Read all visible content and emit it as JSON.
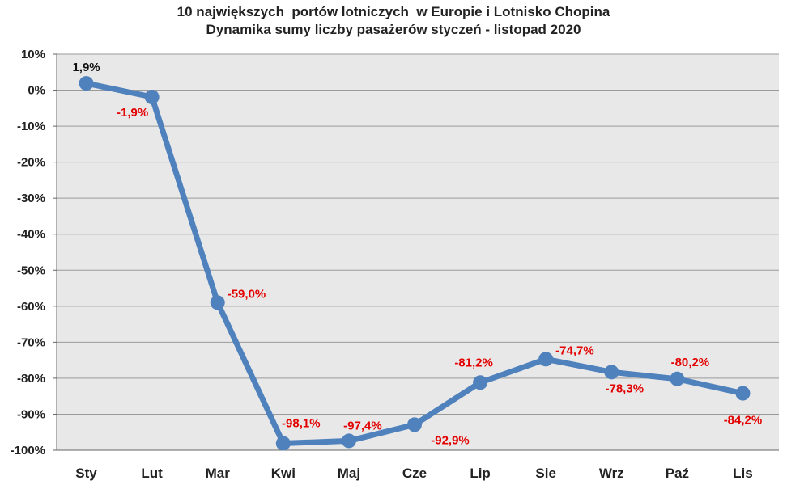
{
  "chart_data": {
    "type": "line",
    "title": "10 największych  portów lotniczych  w Europie i Lotnisko Chopina",
    "subtitle": "Dynamika sumy liczby pasażerów styczeń - listopad 2020",
    "xlabel": "",
    "ylabel": "",
    "categories": [
      "Sty",
      "Lut",
      "Mar",
      "Kwi",
      "Maj",
      "Cze",
      "Lip",
      "Sie",
      "Wrz",
      "Paź",
      "Lis"
    ],
    "series": [
      {
        "values": [
          1.9,
          -1.9,
          -59.0,
          -98.1,
          -97.4,
          -92.9,
          -81.2,
          -74.7,
          -78.3,
          -80.2,
          -84.2
        ]
      }
    ],
    "data_labels": [
      "1,9%",
      "-1,9%",
      "-59,0%",
      "-98,1%",
      "-97,4%",
      "-92,9%",
      "-81,2%",
      "-74,7%",
      "-78,3%",
      "-80,2%",
      "-84,2%"
    ],
    "yticks": [
      10,
      0,
      -10,
      -20,
      -30,
      -40,
      -50,
      -60,
      -70,
      -80,
      -90,
      -100
    ],
    "ytick_labels": [
      "10%",
      "0%",
      "-10%",
      "-20%",
      "-30%",
      "-40%",
      "-50%",
      "-60%",
      "-70%",
      "-80%",
      "-90%",
      "-100%"
    ],
    "ylim": [
      -100,
      10
    ],
    "grid": true,
    "legend": "none",
    "colors": {
      "line": "#4F81BD",
      "plot_background": "#E8E8E8",
      "grid": "#9A9A9A",
      "label_positive": "#111111",
      "label_negative": "#E30000"
    }
  }
}
